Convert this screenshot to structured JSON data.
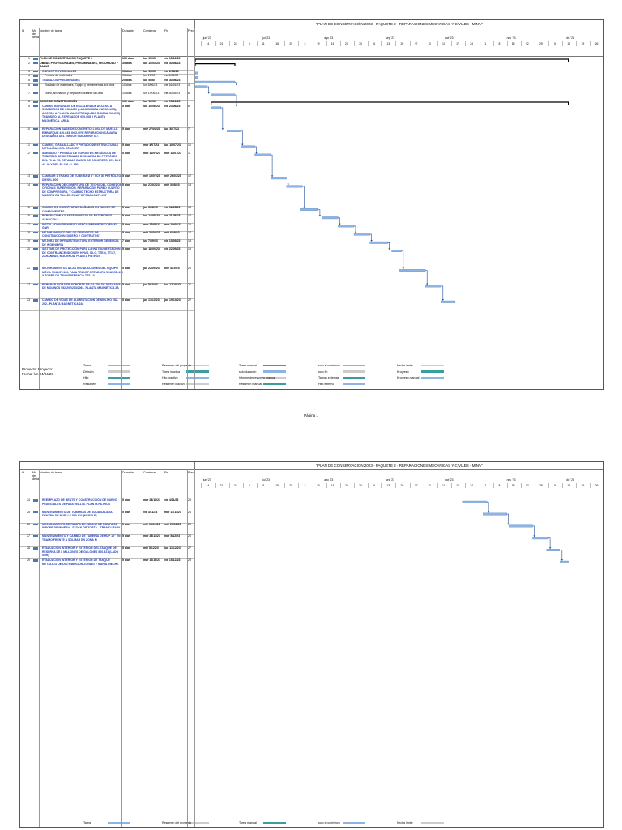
{
  "document_title": "\"PLAN DE CONSERVACIÓN 2023 - PAQUETE 2 - REPARACIONES MECANICAS Y CIVILES - MINA\"",
  "columns": {
    "id": "Id",
    "mode": "Mo de de ta",
    "name": "Nombre de tarea",
    "duration": "Duración",
    "start": "Comienzo",
    "finish": "Fin",
    "pred": "Pred"
  },
  "timescale": {
    "months": [
      "jun '23",
      "jul '23",
      "ago '23",
      "sep '23",
      "oct '23",
      "nov '23",
      "dic '23"
    ],
    "days": [
      "14",
      "21",
      "28",
      "5",
      "11",
      "18",
      "25",
      "2",
      "9",
      "16",
      "23",
      "30",
      "6",
      "13",
      "20",
      "27",
      "3",
      "10",
      "17",
      "24",
      "1",
      "8",
      "15",
      "22",
      "29",
      "5",
      "12",
      "19",
      "26",
      "3",
      "10",
      "17"
    ]
  },
  "tasks_page1": [
    {
      "id": "1",
      "name": "PLAN DE CONSERVACION PAQUETE 2",
      "dur": "155 días",
      "start": "lun 15/05/",
      "finish": "vie 15/12/23",
      "pred": "",
      "style": "b",
      "h": 1
    },
    {
      "id": "2",
      "name": "OBRAS PROVISIONALES, PRELIMINARES, SEGURIDAD Y SALUD",
      "dur": "35 días",
      "start": "lun 15/05/23",
      "finish": "vie 30/06/23",
      "pred": "",
      "style": "b",
      "h": 2
    },
    {
      "id": "3",
      "name": "OBRAS PROVISIONALES",
      "dur": "15 días",
      "start": "lun 15/05/",
      "finish": "vie 2/06/23",
      "pred": "",
      "style": "blue",
      "h": 1
    },
    {
      "id": "4",
      "name": "Procura de materiales",
      "dur": "15 días",
      "start": "lun 15/05/",
      "finish": "vie 2/06/23",
      "pred": "",
      "style": "ind",
      "h": 1
    },
    {
      "id": "5",
      "name": "TRABAJOS PRELIMINARES",
      "dur": "20 días",
      "start": "lun 5/06/",
      "finish": "vie 30/06/23",
      "pred": "",
      "style": "blue",
      "h": 1
    },
    {
      "id": "6",
      "name": "Traslado de materiales, Equipo y herramientas a/d obra",
      "dur": "10 días",
      "start": "lun 5/06/23",
      "finish": "vie 16/06/23",
      "pred": "4",
      "style": "ind",
      "h": 2
    },
    {
      "id": "7",
      "name": "Trazo, Nivelacion y Replanteo durante la Obra",
      "dur": "10 días",
      "start": "lun 19/06/23",
      "finish": "vie 30/06/23",
      "pred": "6",
      "style": "ind",
      "h": 2
    },
    {
      "id": "8",
      "name": "INICIO DE CONSTRUCCIÓN",
      "dur": "130 días",
      "start": "lun 19/06/",
      "finish": "vie 15/12/23",
      "pred": "",
      "style": "b",
      "h": 1
    },
    {
      "id": "9",
      "name": "CAMBIO BARANDAS DE ESCALERA DE ACCESO A SUMIDEROS DE COLAS II (LADO BOMBA 212-1241/58), ACCESO A PLANTA MAGNÉTICA (LADO BOMBA 210-295) Y TRÁNSITO AL ESPESADOR 050-008 Y PLANTA MAGNÉTICA, ÁREA",
      "dur": "5 días",
      "start": "lun 19/06/23",
      "finish": "vie 23/06/23",
      "pred": "6",
      "style": "blue",
      "h": 6
    },
    {
      "id": "10",
      "name": "REPARACION BASE DE CONCRETO, LOSA DE MUELLE EMBARQUE 420-033. INCLUYE REPARACIÓN CÁMARA DESCARGA DEL EMISOR SUMARINO S-7.",
      "dur": "5 días",
      "start": "mié 27/06/23",
      "finish": "lun 3/07/23",
      "pred": "7",
      "style": "blue",
      "h": 4
    },
    {
      "id": "11",
      "name": "CAMBIO, GRANALLADO Y PINTADO DE ESTRUCTURAS METÁLICAS DEL STACKER",
      "dur": "5 días",
      "start": "mar 4/07/23",
      "finish": "lun 10/07/23",
      "pred": "10",
      "style": "blue",
      "h": 2
    },
    {
      "id": "12",
      "name": "ARENADO Y PINTADO DE SOPORTES METÁLICOS DE TUBERÍAS DE SISTEMA DE DESCARGA DE PETRÓLEO DEL 70 AL 75, REPARAR BASES DE CONCRETO DEL 88 27 AL 40 Y DEL 88 156 AL 160",
      "dur": "5 días",
      "start": "mar 11/07/23",
      "finish": "mar 18/07/23",
      "pred": "11",
      "style": "blue",
      "h": 6
    },
    {
      "id": "13",
      "name": "CAMBIAR 1 TRAMO DE TUBERÍA Ø 8\" SCH 80 PETRÓLEO DIESEL 600",
      "dur": "5 días",
      "start": "mié 19/07/23",
      "finish": "mié 26/07/23",
      "pred": "12",
      "style": "blue",
      "h": 2
    },
    {
      "id": "14",
      "name": "REPARACIÓN DE COBERTURA DE TECHO DEL COMEDOR, OFICINAS SUPERVISIÓN, REPARACIÓN PARED CUARTO DE COMPRESORA, Y CAMBIO TECHO ESTRUCTURA DE MADERA EN TALLER EQUIPO PESADO 271-067",
      "dur": "5 días",
      "start": "jue 27/07/23",
      "finish": "mié 3/08/23",
      "pred": "13",
      "style": "blue",
      "h": 6
    },
    {
      "id": "15",
      "name": "CAMBIO DE COBERTURAS DAÑADAS EN TALLER DE COMPONENTES",
      "dur": "5 días",
      "start": "jue 3/08/23",
      "finish": "vie 11/08/23",
      "pred": "14",
      "style": "blue",
      "h": 2
    },
    {
      "id": "16",
      "name": "REPARACION Y MANTENIMIENTO DE EXTERIORES - ALMACEN 3",
      "dur": "5 días",
      "start": "lun 14/08/23",
      "finish": "vie 21/08/23",
      "pred": "15",
      "style": "blue",
      "h": 2
    },
    {
      "id": "17",
      "name": "INSTALACION DE NUEVO CERCO PERIMETRICO EN EX GNR",
      "dur": "5 días",
      "start": "mar 22/08/23",
      "finish": "mar 29/08/23",
      "pred": "16",
      "style": "blue",
      "h": 2
    },
    {
      "id": "18",
      "name": "MEJORAMIENTO DE LOS DEPOSITOS DE CONSTRUCCIÓN, DISEÑO Y CONTRATOS\"",
      "dur": "5 días",
      "start": "mié 30/08/23",
      "finish": "mié 6/09/23",
      "pred": "17",
      "style": "blue",
      "h": 2
    },
    {
      "id": "19",
      "name": "MEJORA DE INFRAESTRUCTURA EXTERIOR GERENCIA DE INGENIERIA",
      "dur": "7 días",
      "start": "jue 7/09/23",
      "finish": "vie 15/09/23",
      "pred": "18",
      "style": "blue",
      "h": 2
    },
    {
      "id": "20",
      "name": "SISTEMA DE PROTECCIÓN PARA LA INSTRUMENTACIÓN DE CONTRAINCENDIOS EN HPUR, SILO, TTE-4, TT1-7, ZARANDAS, MOLIENDA, PLANTA FILTROS",
      "dur": "5 días",
      "start": "lun 18/09/23",
      "finish": "vie 22/09/23",
      "pred": "19",
      "style": "blue",
      "h": 5
    },
    {
      "id": "21",
      "name": "MEJORAMIENTOS A LAS INSTALACIONES DEL EQUIPO MÓVIL 5942-ST-120, FAJA TRANSPORTADORA 5942-CB-110 Y TORRE DE TRANSFERENCIA TTS-10",
      "dur": "5 días",
      "start": "jue 22/09/23",
      "finish": "mié 4/10/23",
      "pred": "20",
      "style": "blue",
      "h": 4
    },
    {
      "id": "22",
      "name": "REPARAR VIGAS DE SOPORTE DE CAJÓN DE DESCARGA DE MOLINOS 052-202/203/206 – PLANTA MAGNÉTICA 2A",
      "dur": "5 días",
      "start": "jue 5/10/23",
      "finish": "lun 12/10/23",
      "pred": "21",
      "style": "blue",
      "h": 4
    },
    {
      "id": "23",
      "name": "CAMBIO DE VIGAS DE ALIMENTACIÓN DE MOLINO 052-202– PLANTA MAGNÉTICA 2A",
      "dur": "5 días",
      "start": "jue 13/10/23",
      "finish": "jue 19/10/23",
      "pred": "22",
      "style": "blue",
      "h": 3
    }
  ],
  "tasks_page2": [
    {
      "id": "24",
      "name": "REEMPLAZO DE BENTS Y CONSTRUCCIÓN DE NUEVO PEDESTALES DE FAJA 051-175- PLANTA FILTROS",
      "dur": "5 días",
      "start": "mar 24/10/23",
      "finish": "vie 4/11/23",
      "pred": "23",
      "style": "blue",
      "h": 3
    },
    {
      "id": "25",
      "name": "MANTENIMIENTO DE TUBERIAS DE AGUA SALADA DENTRO DE MUELLE 800-621 (MUELLE)",
      "dur": "5 días",
      "start": "vie 3/11/23",
      "finish": "mar 14/11/23",
      "pred": "24",
      "style": "blue",
      "h": 3
    },
    {
      "id": "26",
      "name": "MEJORAMIENTO DE RAMPA DE INBONE DE RAMPA DE INBONE DE MINERAL STOCK DE TORTA – TRAMO I FAJA",
      "dur": "5 días",
      "start": "mié 16/11/23",
      "finish": "mié 27/11/23",
      "pred": "25",
      "style": "blue",
      "h": 3
    },
    {
      "id": "27",
      "name": "MANTENIMIENTO Y CAMBIO DE TUBERIA DE HDP 16\" EN TRAMO FRENTE A SOLMAR EN ZONA M",
      "dur": "5 días",
      "start": "mar 28/11/23",
      "finish": "mar 5/12/23",
      "pred": "26",
      "style": "blue",
      "h": 3
    },
    {
      "id": "28",
      "name": "EVALUACIÓN INTERIOR Y EXTERIOR DEL TANQUE DE RESERVA DE 8 MILLONES DE GALONES 800-321 (LADO SUR)",
      "dur": "5 días",
      "start": "mié 5/12/23",
      "finish": "lun 11/12/23",
      "pred": "27",
      "style": "blue",
      "h": 3
    },
    {
      "id": "29",
      "name": "EVALUACIÓN INTERIOR Y EXTERIOR DE TANQUE METÁLICO DE DISTRIBUCIÓN ZONA G Y MARIA INECHE",
      "dur": "5 días",
      "start": "mar 12/12/23",
      "finish": "vie 15/12/23",
      "pred": "28",
      "style": "blue",
      "h": 3
    }
  ],
  "legend": {
    "project": "Proyecto: Proyecto1",
    "date": "Fecha: lun 24/04/23",
    "items": [
      "Tarea",
      "División",
      "Hito",
      "Resumen",
      "Resumen del proyecto",
      "Tarea inactiva",
      "Hito inactivo",
      "Resumen inactivo",
      "Tarea manual",
      "solo duración",
      "Informe de resumen manual",
      "Resumen manual",
      "solo el comienzo",
      "solo fin",
      "Tareas externas",
      "Hito externo",
      "Fecha límite",
      "Progreso",
      "Progreso manual"
    ]
  },
  "page_label": "Página 1",
  "colors": {
    "bar": "#8db4e2",
    "bar_dark": "#4f81bd",
    "link": "#1f4e9c",
    "summary": "#000000"
  }
}
